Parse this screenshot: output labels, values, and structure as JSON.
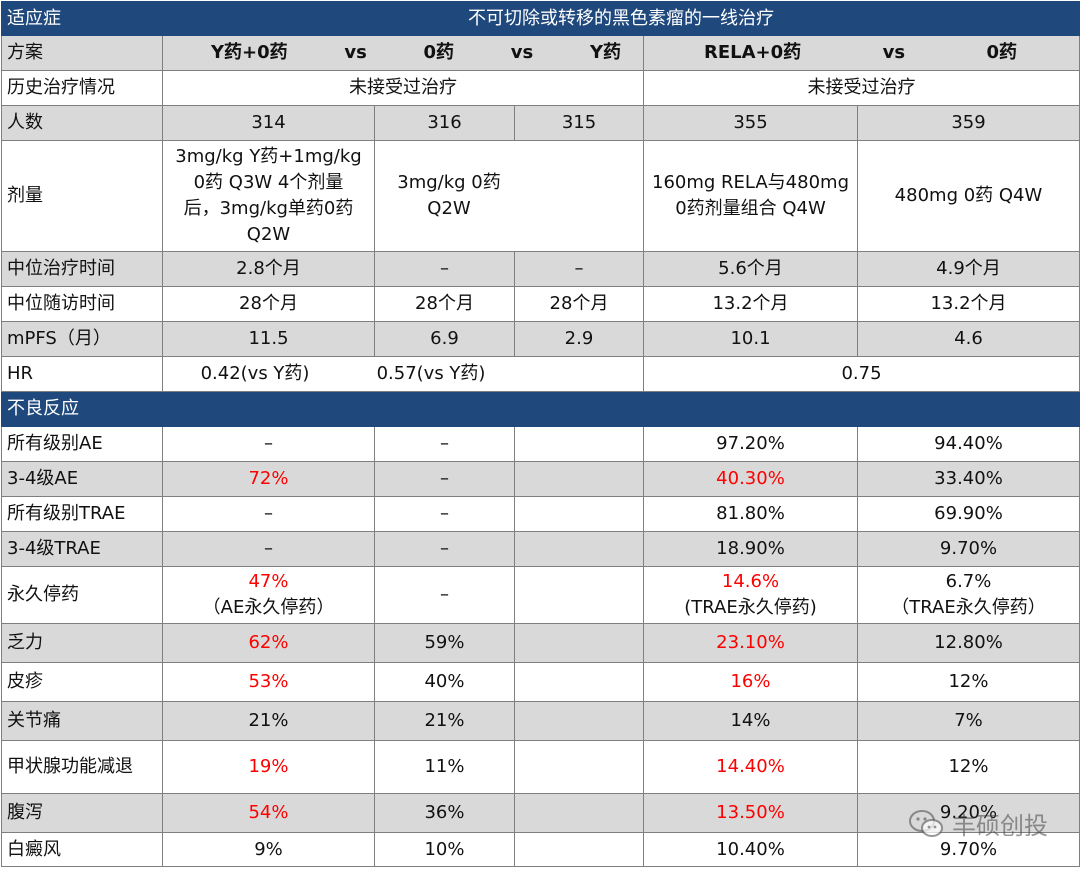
{
  "title_row": {
    "label": "适应症",
    "value": "不可切除或转移的黑色素瘤的一线治疗"
  },
  "plan_row": {
    "label": "方案",
    "left": [
      "Y药+0药",
      "vs",
      "0药",
      "vs",
      "Y药"
    ],
    "right": [
      "RELA+0药",
      "vs",
      "0药"
    ]
  },
  "history_row": {
    "label": "历史治疗情况",
    "left": "未接受过治疗",
    "right": "未接受过治疗"
  },
  "count_row": {
    "label": "人数",
    "values": [
      "314",
      "316",
      "315",
      "355",
      "359"
    ]
  },
  "dose_row": {
    "label": "剂量",
    "c1": [
      "3mg/kg Y药+1mg/kg",
      "0药 Q3W 4个剂量",
      "后，3mg/kg单药0药",
      "Q2W"
    ],
    "c2": [
      "3mg/kg 0药",
      "Q2W"
    ],
    "c4": [
      "160mg RELA与480mg",
      "0药剂量组合 Q4W"
    ],
    "c5": "480mg 0药 Q4W"
  },
  "median_treat_row": {
    "label": "中位治疗时间",
    "values": [
      "2.8个月",
      "–",
      "–",
      "5.6个月",
      "4.9个月"
    ]
  },
  "median_follow_row": {
    "label": "中位随访时间",
    "values": [
      "28个月",
      "28个月",
      "28个月",
      "13.2个月",
      "13.2个月"
    ]
  },
  "mpfs_row": {
    "label": "mPFS（月）",
    "values": [
      "11.5",
      "6.9",
      "2.9",
      "10.1",
      "4.6"
    ]
  },
  "hr_row": {
    "label": "HR",
    "left_a": "0.42(vs Y药)",
    "left_b": "0.57(vs Y药)",
    "right": "0.75"
  },
  "ae_header": {
    "label": "不良反应"
  },
  "ae_rows": [
    {
      "label": "所有级别AE",
      "values": [
        "–",
        "–",
        "97.20%",
        "94.40%"
      ],
      "red": [
        false,
        false,
        false,
        false
      ]
    },
    {
      "label": "3-4级AE",
      "values": [
        "72%",
        "–",
        "40.30%",
        "33.40%"
      ],
      "red": [
        true,
        false,
        true,
        false
      ]
    },
    {
      "label": "所有级别TRAE",
      "values": [
        "–",
        "–",
        "81.80%",
        "69.90%"
      ],
      "red": [
        false,
        false,
        false,
        false
      ]
    },
    {
      "label": "3-4级TRAE",
      "values": [
        "–",
        "–",
        "18.90%",
        "9.70%"
      ],
      "red": [
        false,
        false,
        false,
        false
      ]
    }
  ],
  "stop_row": {
    "label": "永久停药",
    "c1a": "47%",
    "c1b": "（AE永久停药）",
    "c2": "–",
    "c3a": "14.6%",
    "c3b": "(TRAE永久停药)",
    "c4a": "6.7%",
    "c4b": "（TRAE永久停药）"
  },
  "ae_rows2": [
    {
      "label": "乏力",
      "values": [
        "62%",
        "59%",
        "23.10%",
        "12.80%"
      ],
      "red": [
        true,
        false,
        true,
        false
      ]
    },
    {
      "label": "皮疹",
      "values": [
        "53%",
        "40%",
        "16%",
        "12%"
      ],
      "red": [
        true,
        false,
        true,
        false
      ]
    },
    {
      "label": "关节痛",
      "values": [
        "21%",
        "21%",
        "14%",
        "7%"
      ],
      "red": [
        false,
        false,
        false,
        false
      ]
    },
    {
      "label": "甲状腺功能减退",
      "values": [
        "19%",
        "11%",
        "14.40%",
        "12%"
      ],
      "red": [
        true,
        false,
        true,
        false
      ]
    },
    {
      "label": "腹泻",
      "values": [
        "54%",
        "36%",
        "13.50%",
        "9.20%"
      ],
      "red": [
        true,
        false,
        true,
        false
      ]
    },
    {
      "label": "白癜风",
      "values": [
        "9%",
        "10%",
        "10.40%",
        "9.70%"
      ],
      "red": [
        false,
        false,
        false,
        false
      ]
    }
  ],
  "watermark": {
    "text": "丰硕创投",
    "icon": "wechat-icon"
  },
  "colors": {
    "header_bg": "#1f497d",
    "gray_bg": "#d9d9d9",
    "red": "#ff0000"
  }
}
